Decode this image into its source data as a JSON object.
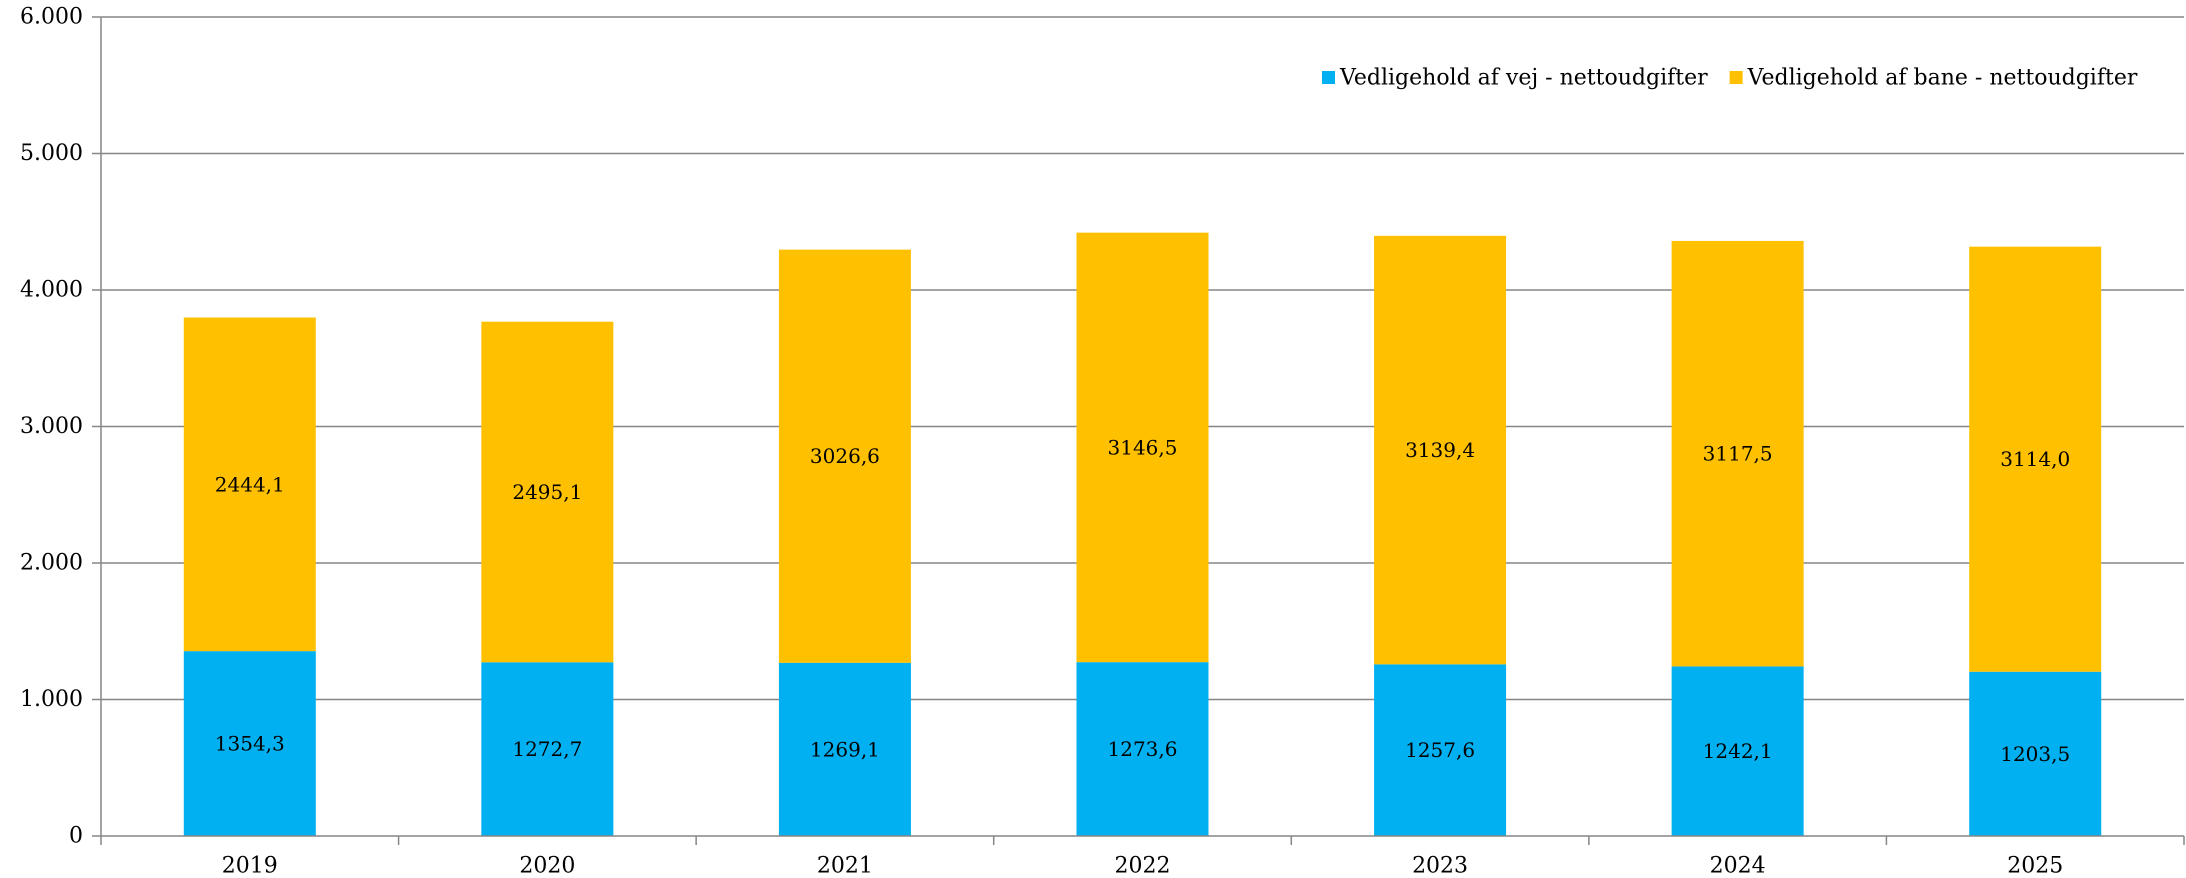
{
  "chart_data": {
    "type": "bar",
    "stacked": true,
    "categories": [
      "2019",
      "2020",
      "2021",
      "2022",
      "2023",
      "2024",
      "2025"
    ],
    "series": [
      {
        "name": "Vedligehold af vej - nettoudgifter",
        "color": "#00B0F0",
        "values": [
          1354.3,
          1272.7,
          1269.1,
          1273.6,
          1257.6,
          1242.1,
          1203.5
        ],
        "labels": [
          "1354,3",
          "1272,7",
          "1269,1",
          "1273,6",
          "1257,6",
          "1242,1",
          "1203,5"
        ]
      },
      {
        "name": "Vedligehold af bane - nettoudgifter",
        "color": "#FFC000",
        "values": [
          2444.1,
          2495.1,
          3026.6,
          3146.5,
          3139.4,
          3117.5,
          3114.0
        ],
        "labels": [
          "2444,1",
          "2495,1",
          "3026,6",
          "3146,5",
          "3139,4",
          "3117,5",
          "3114,0"
        ]
      }
    ],
    "ylim": [
      0,
      6000
    ],
    "yticks": [
      0,
      1000,
      2000,
      3000,
      4000,
      5000,
      6000
    ],
    "ytick_labels": [
      "0",
      "1.000",
      "2.000",
      "3.000",
      "4.000",
      "5.000",
      "6.000"
    ],
    "grid": true,
    "legend_position": "top-right",
    "title": "",
    "xlabel": "",
    "ylabel": ""
  }
}
